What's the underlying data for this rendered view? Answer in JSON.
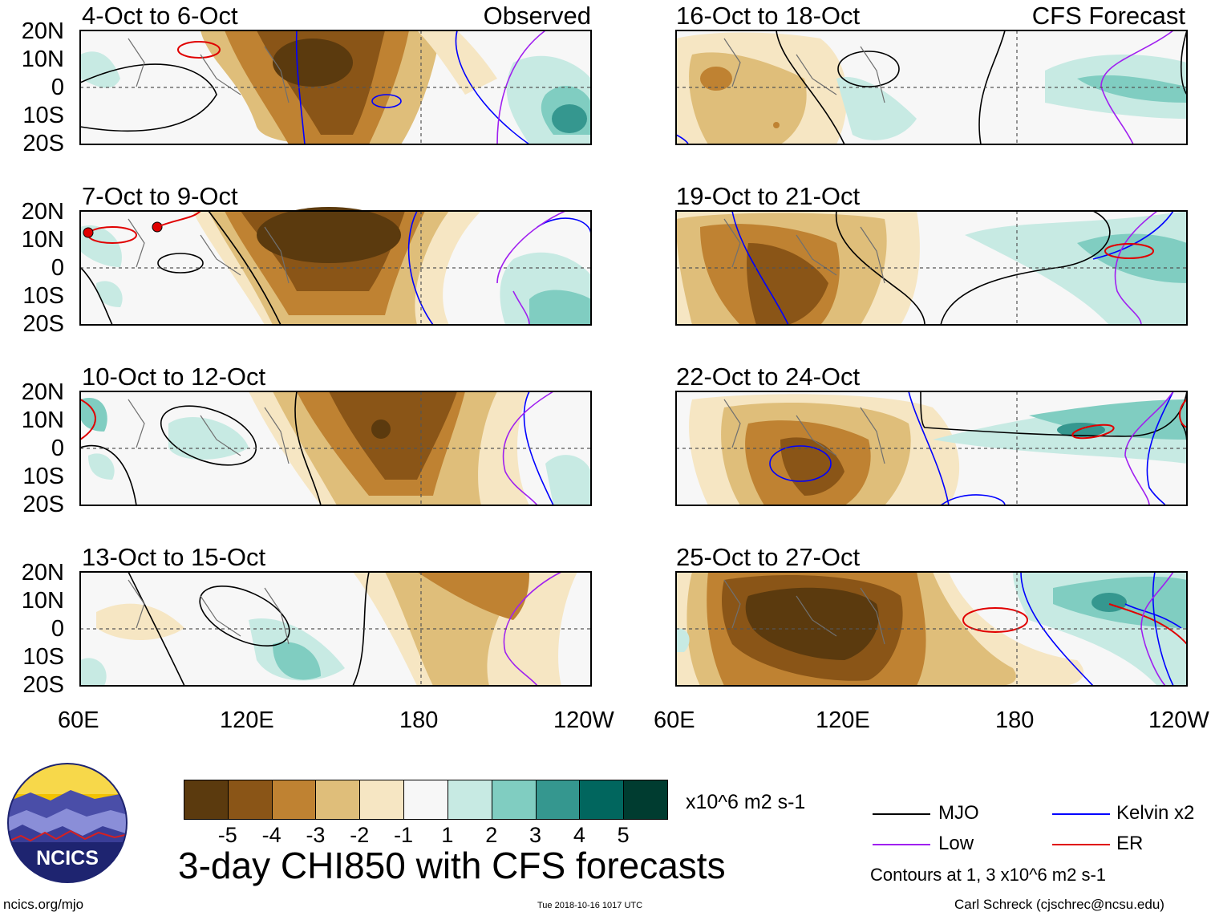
{
  "labels": {
    "observed": "Observed",
    "forecast": "CFS Forecast",
    "lat_ticks": [
      "20N",
      "10N",
      "0",
      "10S",
      "20S"
    ],
    "lon_ticks": [
      "60E",
      "120E",
      "180",
      "120W"
    ]
  },
  "panels": [
    {
      "title": "4-Oct to 6-Oct"
    },
    {
      "title": "7-Oct to 9-Oct"
    },
    {
      "title": "10-Oct to 12-Oct"
    },
    {
      "title": "13-Oct to 15-Oct"
    },
    {
      "title": "16-Oct to 18-Oct"
    },
    {
      "title": "19-Oct to 21-Oct"
    },
    {
      "title": "22-Oct to 24-Oct"
    },
    {
      "title": "25-Oct to 27-Oct"
    }
  ],
  "colorbar": {
    "colors": [
      "#5b3a0e",
      "#8a5517",
      "#bf8232",
      "#dfbe7a",
      "#f6e6c3",
      "#f7f7f7",
      "#c7eae3",
      "#80cdc1",
      "#35978f",
      "#01665e",
      "#003c30"
    ],
    "labels": [
      "-5",
      "-4",
      "-3",
      "-2",
      "-1",
      "1",
      "2",
      "3",
      "4",
      "5"
    ],
    "units": "x10^6 m2 s-1"
  },
  "legend": {
    "items": [
      {
        "label": "MJO",
        "color": "#000000"
      },
      {
        "label": "Kelvin x2",
        "color": "#0000ff"
      },
      {
        "label": "Low",
        "color": "#a020f0"
      },
      {
        "label": "ER",
        "color": "#e00000"
      }
    ],
    "note": "Contours at 1, 3 x10^6 m2 s-1"
  },
  "logo": {
    "text": "NCICS"
  },
  "footer": {
    "title": "3-day CHI850 with CFS forecasts",
    "url": "ncics.org/mjo",
    "timestamp": "Tue 2018-10-16 1017 UTC",
    "credit": "Carl Schreck (cjschrec@ncsu.edu)"
  }
}
